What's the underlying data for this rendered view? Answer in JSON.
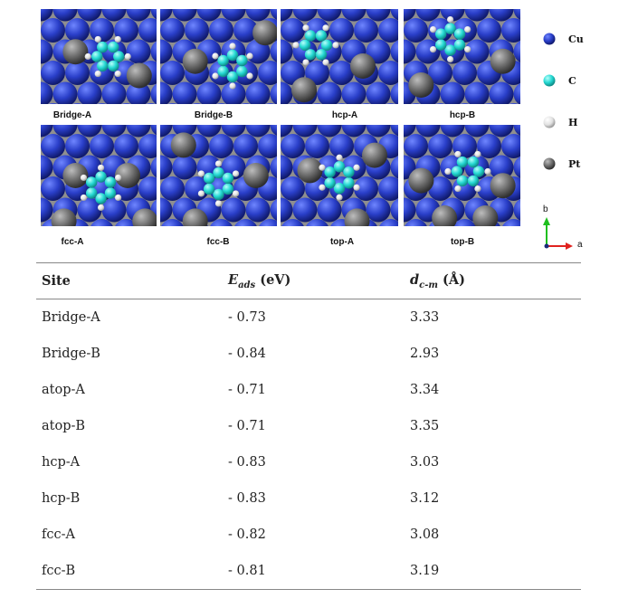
{
  "figure": {
    "panels": [
      {
        "caption": "Bridge-A",
        "icon": "bridge-a-adsorption-panel"
      },
      {
        "caption": "Bridge-B",
        "icon": "bridge-b-adsorption-panel"
      },
      {
        "caption": "hcp-A",
        "icon": "hcp-a-adsorption-panel"
      },
      {
        "caption": "hcp-B",
        "icon": "hcp-b-adsorption-panel"
      },
      {
        "caption": "fcc-A",
        "icon": "fcc-a-adsorption-panel"
      },
      {
        "caption": "fcc-B",
        "icon": "fcc-b-adsorption-panel"
      },
      {
        "caption": "top-A",
        "icon": "top-a-adsorption-panel"
      },
      {
        "caption": "top-B",
        "icon": "top-b-adsorption-panel"
      }
    ],
    "legend": [
      {
        "label": "Cu",
        "color": "#2a3fc9"
      },
      {
        "label": "C",
        "color": "#25d9d3"
      },
      {
        "label": "H",
        "color": "#e8e8e8"
      },
      {
        "label": "Pt",
        "color": "#6e6e6e"
      }
    ],
    "axes": {
      "b": "b",
      "a": "a"
    }
  },
  "table": {
    "headers": {
      "site": "Site",
      "eads_symbol": "E",
      "eads_sub": "ads",
      "eads_unit": " (eV)",
      "dcm_symbol": "d",
      "dcm_sub": "c-m",
      "dcm_unit": " (Å)"
    },
    "rows": [
      [
        "Bridge-A",
        "- 0.73",
        "3.33"
      ],
      [
        "Bridge-B",
        "- 0.84",
        "2.93"
      ],
      [
        "atop-A",
        "- 0.71",
        "3.34"
      ],
      [
        "atop-B",
        "- 0.71",
        "3.35"
      ],
      [
        "hcp-A",
        "- 0.83",
        "3.03"
      ],
      [
        "hcp-B",
        "- 0.83",
        "3.12"
      ],
      [
        "fcc-A",
        "- 0.82",
        "3.08"
      ],
      [
        "fcc-B",
        "- 0.81",
        "3.19"
      ]
    ]
  }
}
